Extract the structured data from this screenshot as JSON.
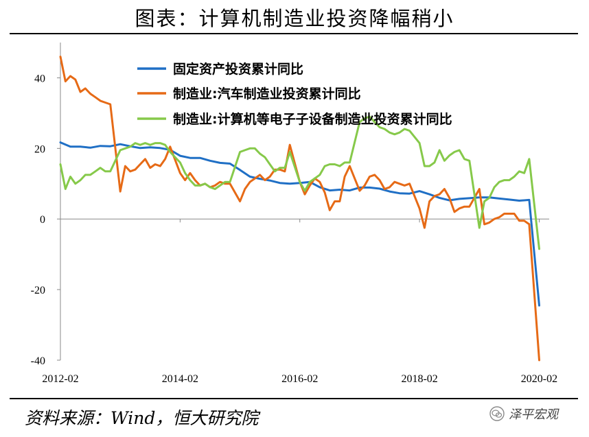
{
  "page": {
    "title": "图表：计算机制造业投资降幅稍小",
    "source": "资料来源：Wind，恒大研究院",
    "watermark": "泽平宏观",
    "watermark_icon": "wechat-icon"
  },
  "chart_data": {
    "type": "line",
    "title": "图表：计算机制造业投资降幅稍小",
    "xlabel": "",
    "ylabel": "",
    "x_range": [
      "2012-02",
      "2020-04"
    ],
    "x_ticks": [
      "2012-02",
      "2014-02",
      "2016-02",
      "2018-02",
      "2020-02"
    ],
    "ylim": [
      -40,
      50
    ],
    "y_ticks": [
      40,
      20,
      0,
      -20,
      -40
    ],
    "grid": false,
    "legend": "top",
    "series": [
      {
        "name": "固定资产投资累计同比",
        "color": "#1f6fc5",
        "points": [
          [
            "2012-02",
            21.7
          ],
          [
            "2012-04",
            20.5
          ],
          [
            "2012-06",
            20.5
          ],
          [
            "2012-08",
            20.2
          ],
          [
            "2012-10",
            20.7
          ],
          [
            "2012-12",
            20.6
          ],
          [
            "2013-02",
            21.2
          ],
          [
            "2013-04",
            20.6
          ],
          [
            "2013-06",
            20.1
          ],
          [
            "2013-08",
            20.3
          ],
          [
            "2013-10",
            20.1
          ],
          [
            "2013-12",
            19.6
          ],
          [
            "2014-02",
            17.9
          ],
          [
            "2014-04",
            17.3
          ],
          [
            "2014-06",
            17.3
          ],
          [
            "2014-08",
            16.5
          ],
          [
            "2014-10",
            15.9
          ],
          [
            "2014-12",
            15.7
          ],
          [
            "2015-02",
            13.9
          ],
          [
            "2015-04",
            12.0
          ],
          [
            "2015-06",
            11.4
          ],
          [
            "2015-08",
            10.9
          ],
          [
            "2015-10",
            10.2
          ],
          [
            "2015-12",
            10.0
          ],
          [
            "2016-02",
            10.2
          ],
          [
            "2016-04",
            10.5
          ],
          [
            "2016-06",
            9.0
          ],
          [
            "2016-08",
            8.1
          ],
          [
            "2016-10",
            8.3
          ],
          [
            "2016-12",
            8.1
          ],
          [
            "2017-02",
            8.9
          ],
          [
            "2017-04",
            8.9
          ],
          [
            "2017-06",
            8.6
          ],
          [
            "2017-08",
            7.8
          ],
          [
            "2017-10",
            7.3
          ],
          [
            "2017-12",
            7.2
          ],
          [
            "2018-02",
            7.9
          ],
          [
            "2018-04",
            7.0
          ],
          [
            "2018-06",
            6.0
          ],
          [
            "2018-08",
            5.3
          ],
          [
            "2018-10",
            5.7
          ],
          [
            "2018-12",
            5.9
          ],
          [
            "2019-02",
            6.1
          ],
          [
            "2019-04",
            6.1
          ],
          [
            "2019-06",
            5.8
          ],
          [
            "2019-08",
            5.5
          ],
          [
            "2019-10",
            5.2
          ],
          [
            "2019-12",
            5.4
          ],
          [
            "2020-02",
            -24.5
          ]
        ]
      },
      {
        "name": "制造业:汽车制造业投资累计同比",
        "color": "#e66a16",
        "points": [
          [
            "2012-02",
            46.0
          ],
          [
            "2012-03",
            39.0
          ],
          [
            "2012-04",
            40.5
          ],
          [
            "2012-05",
            39.5
          ],
          [
            "2012-06",
            36.0
          ],
          [
            "2012-07",
            37.0
          ],
          [
            "2012-08",
            35.5
          ],
          [
            "2012-09",
            34.5
          ],
          [
            "2012-10",
            33.5
          ],
          [
            "2012-11",
            33.0
          ],
          [
            "2012-12",
            32.5
          ],
          [
            "2013-02",
            7.8
          ],
          [
            "2013-03",
            15.0
          ],
          [
            "2013-04",
            13.5
          ],
          [
            "2013-05",
            14.0
          ],
          [
            "2013-06",
            15.5
          ],
          [
            "2013-07",
            17.0
          ],
          [
            "2013-08",
            14.5
          ],
          [
            "2013-09",
            15.5
          ],
          [
            "2013-10",
            15.0
          ],
          [
            "2013-11",
            17.0
          ],
          [
            "2013-12",
            20.5
          ],
          [
            "2014-02",
            13.0
          ],
          [
            "2014-03",
            11.0
          ],
          [
            "2014-04",
            13.0
          ],
          [
            "2014-05",
            11.0
          ],
          [
            "2014-06",
            9.5
          ],
          [
            "2014-07",
            10.0
          ],
          [
            "2014-08",
            9.0
          ],
          [
            "2014-09",
            9.5
          ],
          [
            "2014-10",
            10.5
          ],
          [
            "2014-11",
            10.0
          ],
          [
            "2014-12",
            10.0
          ],
          [
            "2015-02",
            5.0
          ],
          [
            "2015-03",
            8.5
          ],
          [
            "2015-04",
            10.5
          ],
          [
            "2015-05",
            11.5
          ],
          [
            "2015-06",
            12.5
          ],
          [
            "2015-07",
            11.0
          ],
          [
            "2015-08",
            12.0
          ],
          [
            "2015-09",
            14.0
          ],
          [
            "2015-10",
            14.0
          ],
          [
            "2015-11",
            13.5
          ],
          [
            "2015-12",
            21.0
          ],
          [
            "2016-02",
            10.5
          ],
          [
            "2016-03",
            7.0
          ],
          [
            "2016-04",
            9.5
          ],
          [
            "2016-05",
            11.5
          ],
          [
            "2016-06",
            10.5
          ],
          [
            "2016-07",
            7.5
          ],
          [
            "2016-08",
            2.5
          ],
          [
            "2016-09",
            5.0
          ],
          [
            "2016-10",
            5.0
          ],
          [
            "2016-11",
            12.0
          ],
          [
            "2016-12",
            15.0
          ],
          [
            "2017-02",
            8.0
          ],
          [
            "2017-03",
            9.5
          ],
          [
            "2017-04",
            12.0
          ],
          [
            "2017-05",
            12.5
          ],
          [
            "2017-06",
            11.0
          ],
          [
            "2017-07",
            8.5
          ],
          [
            "2017-08",
            9.0
          ],
          [
            "2017-09",
            10.5
          ],
          [
            "2017-10",
            10.0
          ],
          [
            "2017-11",
            9.5
          ],
          [
            "2017-12",
            10.0
          ],
          [
            "2018-02",
            3.0
          ],
          [
            "2018-03",
            -2.5
          ],
          [
            "2018-04",
            5.0
          ],
          [
            "2018-05",
            6.5
          ],
          [
            "2018-06",
            7.0
          ],
          [
            "2018-07",
            8.5
          ],
          [
            "2018-08",
            6.0
          ],
          [
            "2018-09",
            2.0
          ],
          [
            "2018-10",
            3.0
          ],
          [
            "2018-11",
            3.5
          ],
          [
            "2018-12",
            3.5
          ],
          [
            "2019-02",
            8.5
          ],
          [
            "2019-03",
            -1.5
          ],
          [
            "2019-04",
            -1.0
          ],
          [
            "2019-05",
            0.0
          ],
          [
            "2019-06",
            0.5
          ],
          [
            "2019-07",
            1.5
          ],
          [
            "2019-08",
            1.5
          ],
          [
            "2019-09",
            1.5
          ],
          [
            "2019-10",
            -0.5
          ],
          [
            "2019-11",
            -0.5
          ],
          [
            "2019-12",
            -1.5
          ],
          [
            "2020-02",
            -40.0
          ]
        ]
      },
      {
        "name": "制造业:计算机等电子子设备制造业投资累计同比",
        "color": "#86c94a",
        "points": [
          [
            "2012-02",
            15.5
          ],
          [
            "2012-03",
            8.5
          ],
          [
            "2012-04",
            12.0
          ],
          [
            "2012-05",
            10.0
          ],
          [
            "2012-06",
            11.0
          ],
          [
            "2012-07",
            12.5
          ],
          [
            "2012-08",
            12.5
          ],
          [
            "2012-09",
            13.5
          ],
          [
            "2012-10",
            14.5
          ],
          [
            "2012-11",
            13.5
          ],
          [
            "2012-12",
            13.5
          ],
          [
            "2013-02",
            19.5
          ],
          [
            "2013-03",
            20.0
          ],
          [
            "2013-04",
            20.5
          ],
          [
            "2013-05",
            21.5
          ],
          [
            "2013-06",
            21.0
          ],
          [
            "2013-07",
            21.5
          ],
          [
            "2013-08",
            21.0
          ],
          [
            "2013-09",
            21.5
          ],
          [
            "2013-10",
            21.5
          ],
          [
            "2013-11",
            21.0
          ],
          [
            "2013-12",
            19.0
          ],
          [
            "2014-02",
            16.0
          ],
          [
            "2014-03",
            13.0
          ],
          [
            "2014-04",
            11.0
          ],
          [
            "2014-05",
            9.5
          ],
          [
            "2014-06",
            9.5
          ],
          [
            "2014-07",
            10.0
          ],
          [
            "2014-08",
            9.0
          ],
          [
            "2014-09",
            8.5
          ],
          [
            "2014-10",
            9.5
          ],
          [
            "2014-11",
            10.5
          ],
          [
            "2014-12",
            10.5
          ],
          [
            "2015-02",
            19.0
          ],
          [
            "2015-03",
            19.5
          ],
          [
            "2015-04",
            20.0
          ],
          [
            "2015-05",
            20.0
          ],
          [
            "2015-06",
            18.5
          ],
          [
            "2015-07",
            17.5
          ],
          [
            "2015-08",
            15.5
          ],
          [
            "2015-09",
            13.5
          ],
          [
            "2015-10",
            14.5
          ],
          [
            "2015-11",
            14.5
          ],
          [
            "2015-12",
            19.0
          ],
          [
            "2016-02",
            10.5
          ],
          [
            "2016-03",
            8.0
          ],
          [
            "2016-04",
            10.5
          ],
          [
            "2016-05",
            11.5
          ],
          [
            "2016-06",
            12.5
          ],
          [
            "2016-07",
            15.0
          ],
          [
            "2016-08",
            15.5
          ],
          [
            "2016-09",
            15.5
          ],
          [
            "2016-10",
            15.0
          ],
          [
            "2016-11",
            16.0
          ],
          [
            "2016-12",
            16.0
          ],
          [
            "2017-02",
            27.5
          ],
          [
            "2017-03",
            28.5
          ],
          [
            "2017-04",
            29.0
          ],
          [
            "2017-05",
            27.5
          ],
          [
            "2017-06",
            26.0
          ],
          [
            "2017-07",
            25.5
          ],
          [
            "2017-08",
            24.5
          ],
          [
            "2017-09",
            24.0
          ],
          [
            "2017-10",
            24.5
          ],
          [
            "2017-11",
            25.5
          ],
          [
            "2017-12",
            25.0
          ],
          [
            "2018-02",
            21.5
          ],
          [
            "2018-03",
            15.0
          ],
          [
            "2018-04",
            15.0
          ],
          [
            "2018-05",
            16.0
          ],
          [
            "2018-06",
            19.5
          ],
          [
            "2018-07",
            16.5
          ],
          [
            "2018-08",
            18.0
          ],
          [
            "2018-09",
            19.0
          ],
          [
            "2018-10",
            19.5
          ],
          [
            "2018-11",
            17.0
          ],
          [
            "2018-12",
            16.5
          ],
          [
            "2019-02",
            -2.5
          ],
          [
            "2019-03",
            5.0
          ],
          [
            "2019-04",
            6.0
          ],
          [
            "2019-05",
            9.0
          ],
          [
            "2019-06",
            10.5
          ],
          [
            "2019-07",
            11.0
          ],
          [
            "2019-08",
            11.0
          ],
          [
            "2019-09",
            12.0
          ],
          [
            "2019-10",
            13.5
          ],
          [
            "2019-11",
            13.0
          ],
          [
            "2019-12",
            17.0
          ],
          [
            "2020-02",
            -8.5
          ]
        ]
      }
    ]
  }
}
